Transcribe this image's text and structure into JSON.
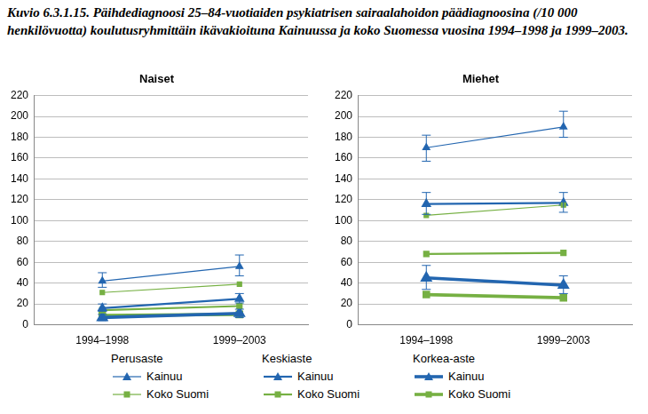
{
  "caption": "Kuvio 6.3.1.15. Päihdediagnoosi 25–84-vuotiaiden psykiatrisen sairaalahoidon päädiagnoosina (/10 000 henkilövuotta) koulutusryhmittäin ikävakioituna Kainuussa ja koko Suomessa vuosina 1994–1998 ja 1999–2003.",
  "chart_data": [
    {
      "type": "line",
      "title": "Naiset",
      "categories": [
        "1994–1998",
        "1999–2003"
      ],
      "ylim": [
        0,
        220
      ],
      "yticks": [
        0,
        20,
        40,
        60,
        80,
        100,
        120,
        140,
        160,
        180,
        200,
        220
      ],
      "grid": true,
      "legend": "bottom",
      "series": [
        {
          "name": "Kainuu",
          "group": "Perusaste",
          "color": "#2366b0",
          "marker": "triangle",
          "line_style": "thin",
          "values": [
            42,
            56
          ],
          "error_low": [
            36,
            47
          ],
          "error_high": [
            50,
            67
          ]
        },
        {
          "name": "Koko Suomi",
          "group": "Perusaste",
          "color": "#76b043",
          "marker": "square",
          "line_style": "thin",
          "values": [
            31,
            39
          ]
        },
        {
          "name": "Kainuu",
          "group": "Keskiaste",
          "color": "#2366b0",
          "marker": "triangle",
          "line_style": "medium",
          "values": [
            16,
            25
          ],
          "error_low": [
            13,
            21
          ],
          "error_high": [
            20,
            30
          ]
        },
        {
          "name": "Koko Suomi",
          "group": "Keskiaste",
          "color": "#76b043",
          "marker": "square",
          "line_style": "medium",
          "values": [
            14,
            18
          ]
        },
        {
          "name": "Kainuu",
          "group": "Korkea-aste",
          "color": "#2366b0",
          "marker": "triangle",
          "line_style": "thick",
          "values": [
            7,
            11
          ],
          "error_low": [
            4,
            7
          ],
          "error_high": [
            10,
            15
          ]
        },
        {
          "name": "Koko Suomi",
          "group": "Korkea-aste",
          "color": "#76b043",
          "marker": "square",
          "line_style": "thick",
          "values": [
            9,
            10
          ]
        }
      ]
    },
    {
      "type": "line",
      "title": "Miehet",
      "categories": [
        "1994–1998",
        "1999–2003"
      ],
      "ylim": [
        0,
        220
      ],
      "yticks": [
        0,
        20,
        40,
        60,
        80,
        100,
        120,
        140,
        160,
        180,
        200,
        220
      ],
      "grid": true,
      "legend": "bottom",
      "series": [
        {
          "name": "Kainuu",
          "group": "Perusaste",
          "color": "#2366b0",
          "marker": "triangle",
          "line_style": "thin",
          "values": [
            170,
            190
          ],
          "error_low": [
            157,
            180
          ],
          "error_high": [
            182,
            205
          ]
        },
        {
          "name": "Koko Suomi",
          "group": "Perusaste",
          "color": "#76b043",
          "marker": "square",
          "line_style": "thin",
          "values": [
            105,
            115
          ]
        },
        {
          "name": "Kainuu",
          "group": "Keskiaste",
          "color": "#2366b0",
          "marker": "triangle",
          "line_style": "medium",
          "values": [
            116,
            117
          ],
          "error_low": [
            106,
            108
          ],
          "error_high": [
            127,
            127
          ]
        },
        {
          "name": "Koko Suomi",
          "group": "Keskiaste",
          "color": "#76b043",
          "marker": "square",
          "line_style": "medium",
          "values": [
            68,
            69
          ]
        },
        {
          "name": "Kainuu",
          "group": "Korkea-aste",
          "color": "#2366b0",
          "marker": "triangle",
          "line_style": "thick",
          "values": [
            45,
            38
          ],
          "error_low": [
            34,
            30
          ],
          "error_high": [
            57,
            47
          ]
        },
        {
          "name": "Koko Suomi",
          "group": "Korkea-aste",
          "color": "#76b043",
          "marker": "square",
          "line_style": "thick",
          "values": [
            29,
            26
          ]
        }
      ]
    }
  ]
}
